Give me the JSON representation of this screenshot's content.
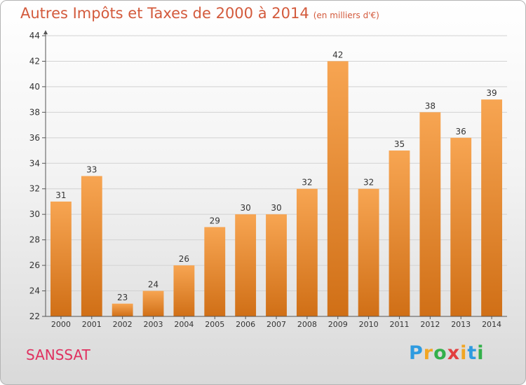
{
  "header": {
    "title": "Autres Impôts et Taxes de 2000 à 2014",
    "subtitle": "(en milliers d'€)"
  },
  "footer": {
    "town": "SANSSAT",
    "logo_text": "Proxiti",
    "logo_colors": [
      "#2e9be0",
      "#f2a623",
      "#33b04a",
      "#e23f3f",
      "#f2a623",
      "#2e9be0",
      "#33b04a"
    ]
  },
  "colors": {
    "bar_top": "#f7a552",
    "bar_bottom": "#d06f16",
    "title": "#d35a3c",
    "town": "#e0305f",
    "grid": "#d2d2d2"
  },
  "chart_data": {
    "type": "bar",
    "categories": [
      "2000",
      "2001",
      "2002",
      "2003",
      "2004",
      "2005",
      "2006",
      "2007",
      "2008",
      "2009",
      "2010",
      "2011",
      "2012",
      "2013",
      "2014"
    ],
    "values": [
      31,
      33,
      23,
      24,
      26,
      29,
      30,
      30,
      32,
      42,
      32,
      35,
      38,
      36,
      39
    ],
    "ylim": [
      22,
      44
    ],
    "yticks": [
      22,
      24,
      26,
      28,
      30,
      32,
      34,
      36,
      38,
      40,
      42,
      44
    ],
    "grid": true,
    "data_labels": true
  }
}
